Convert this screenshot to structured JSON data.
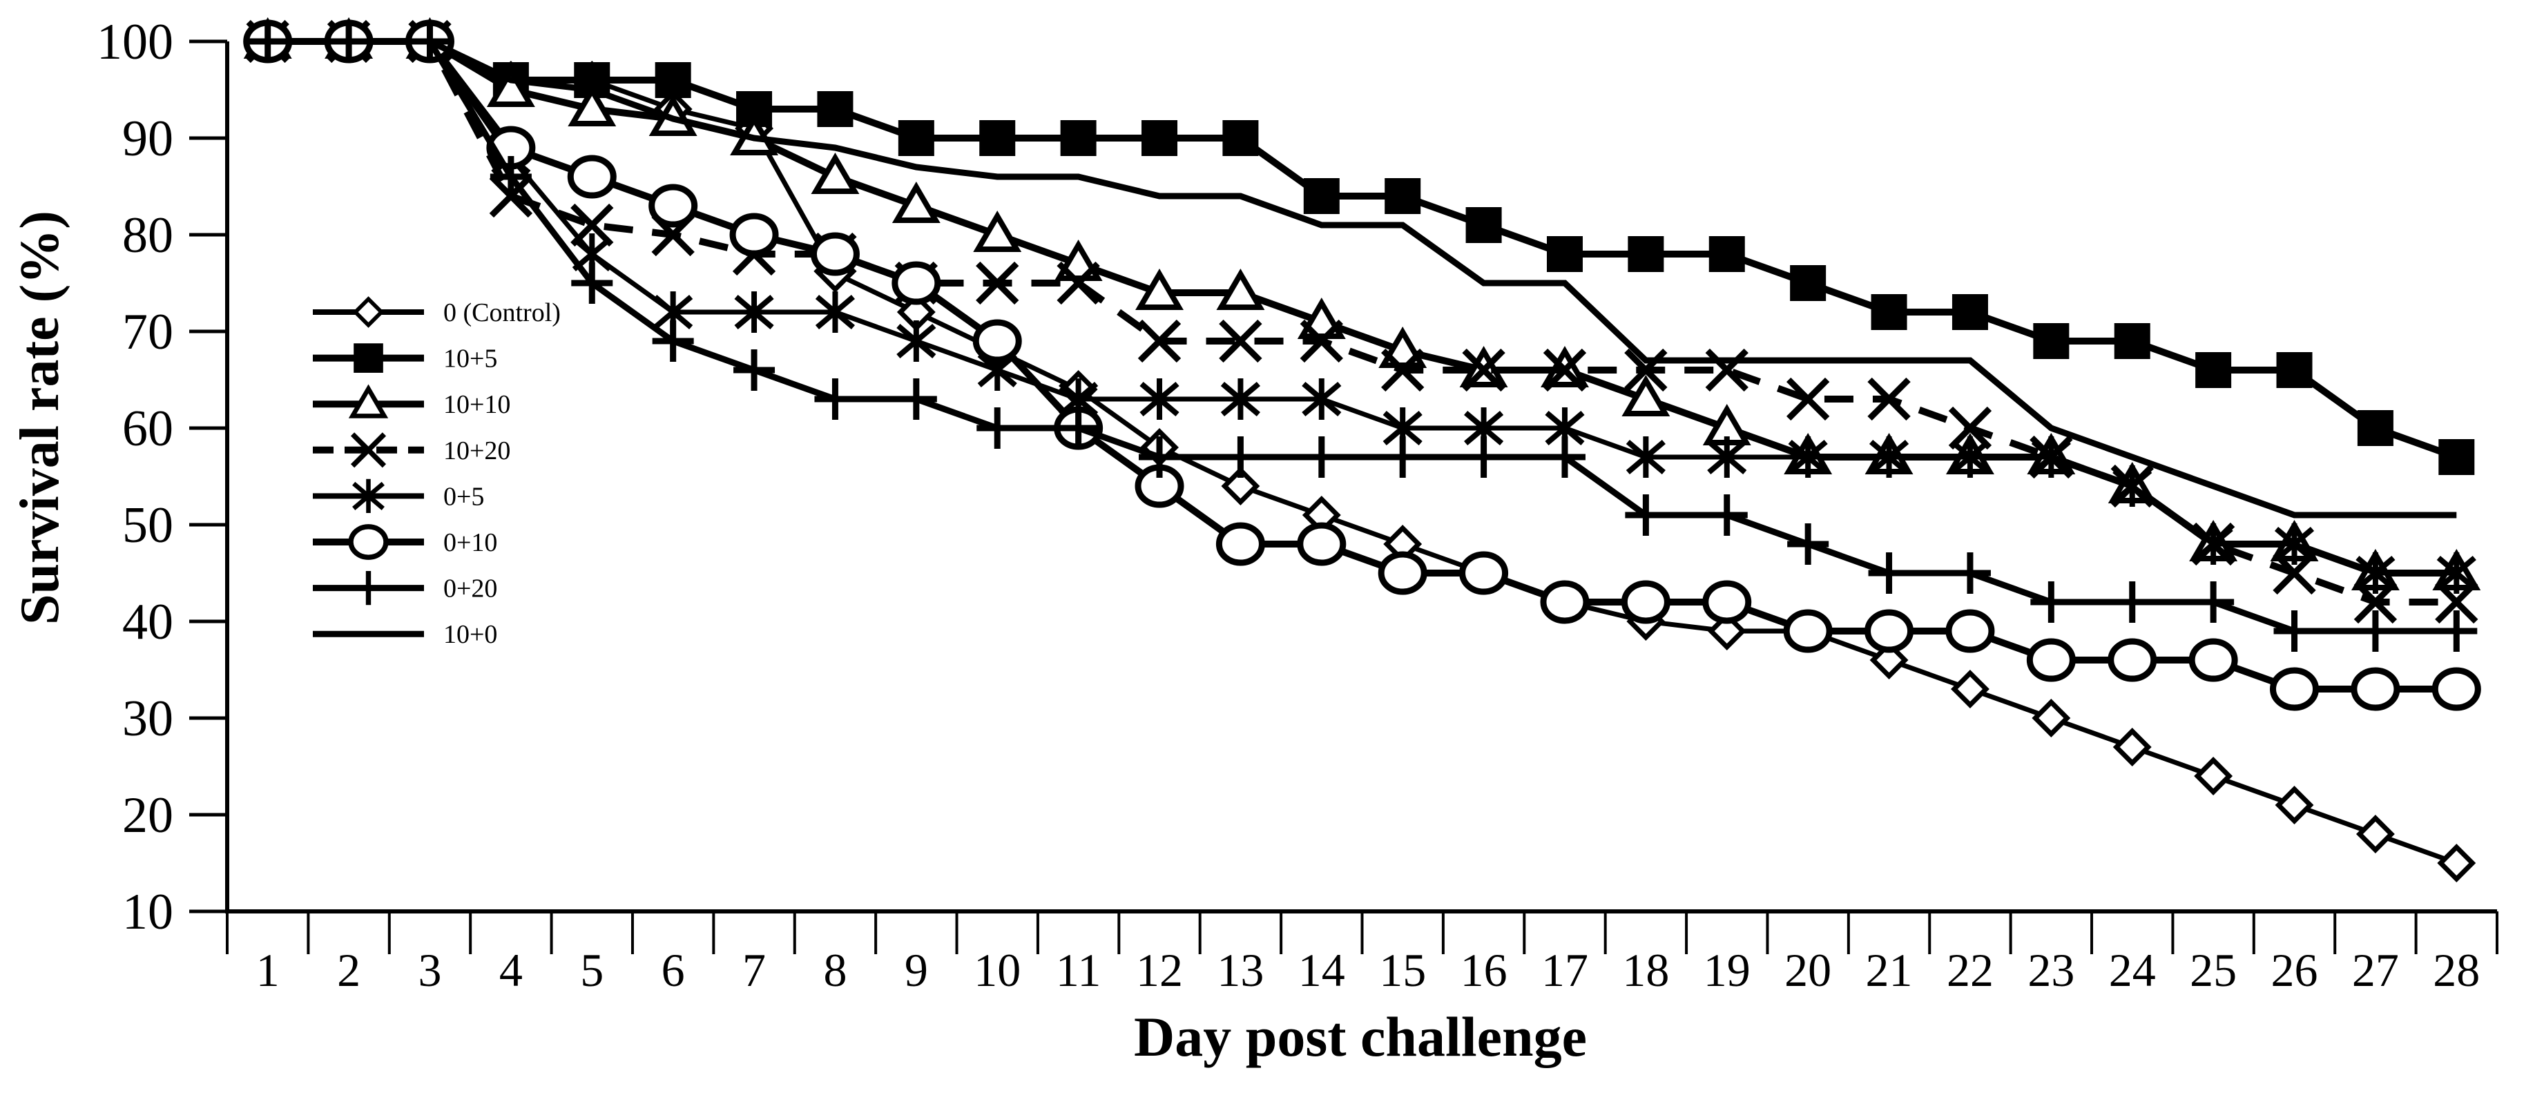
{
  "chart_data": {
    "type": "line",
    "title": "",
    "xlabel": "Day post challenge",
    "ylabel": "Survival rate (%)",
    "x": [
      1,
      2,
      3,
      4,
      5,
      6,
      7,
      8,
      9,
      10,
      11,
      12,
      13,
      14,
      15,
      16,
      17,
      18,
      19,
      20,
      21,
      22,
      23,
      24,
      25,
      26,
      27,
      28
    ],
    "ylim": [
      10,
      100
    ],
    "yticks": [
      10,
      20,
      30,
      40,
      50,
      60,
      70,
      80,
      90,
      100
    ],
    "grid": false,
    "legend_position": "upper-left-inside",
    "line_color": "#000000",
    "background": "#ffffff",
    "series": [
      {
        "name": "0 (Control)",
        "marker": "diamond",
        "dash": false,
        "width": 7,
        "values": [
          100,
          100,
          100,
          96,
          96,
          93,
          91,
          76,
          72,
          68,
          64,
          58,
          54,
          51,
          48,
          45,
          42,
          40,
          39,
          39,
          36,
          33,
          30,
          27,
          24,
          21,
          18,
          15
        ]
      },
      {
        "name": "10+5",
        "marker": "square",
        "dash": false,
        "width": 10,
        "values": [
          100,
          100,
          100,
          96,
          96,
          96,
          93,
          93,
          90,
          90,
          90,
          90,
          90,
          84,
          84,
          81,
          78,
          78,
          78,
          75,
          72,
          72,
          69,
          69,
          66,
          66,
          60,
          57
        ]
      },
      {
        "name": "10+10",
        "marker": "triangle",
        "dash": false,
        "width": 10,
        "values": [
          100,
          100,
          100,
          95,
          93,
          92,
          90,
          86,
          83,
          80,
          77,
          74,
          74,
          71,
          68,
          66,
          66,
          63,
          60,
          57,
          57,
          57,
          57,
          54,
          48,
          48,
          45,
          45
        ]
      },
      {
        "name": "10+20",
        "marker": "x",
        "dash": true,
        "width": 10,
        "values": [
          100,
          100,
          100,
          84,
          81,
          80,
          78,
          78,
          75,
          75,
          75,
          69,
          69,
          69,
          66,
          66,
          66,
          66,
          66,
          63,
          63,
          60,
          57,
          54,
          48,
          45,
          42,
          42
        ]
      },
      {
        "name": "0+5",
        "marker": "asterisk",
        "dash": false,
        "width": 7,
        "values": [
          100,
          100,
          100,
          88,
          78,
          72,
          72,
          72,
          69,
          66,
          63,
          63,
          63,
          63,
          60,
          60,
          60,
          57,
          57,
          57,
          57,
          57,
          57,
          54,
          48,
          48,
          45,
          45
        ]
      },
      {
        "name": "0+10",
        "marker": "circle",
        "dash": false,
        "width": 10,
        "values": [
          100,
          100,
          100,
          89,
          86,
          83,
          80,
          78,
          75,
          69,
          60,
          54,
          48,
          48,
          45,
          45,
          42,
          42,
          42,
          39,
          39,
          39,
          36,
          36,
          36,
          33,
          33,
          33
        ]
      },
      {
        "name": "0+20",
        "marker": "plus",
        "dash": false,
        "width": 9,
        "values": [
          100,
          100,
          100,
          86,
          75,
          69,
          66,
          63,
          63,
          60,
          60,
          57,
          57,
          57,
          57,
          57,
          57,
          51,
          51,
          48,
          45,
          45,
          42,
          42,
          42,
          39,
          39,
          39
        ]
      },
      {
        "name": "10+0",
        "marker": "none",
        "dash": false,
        "width": 9,
        "values": [
          100,
          100,
          100,
          96,
          95,
          92,
          90,
          89,
          87,
          86,
          86,
          84,
          84,
          81,
          81,
          75,
          75,
          67,
          67,
          67,
          67,
          67,
          60,
          57,
          54,
          51,
          51,
          51
        ]
      }
    ]
  }
}
